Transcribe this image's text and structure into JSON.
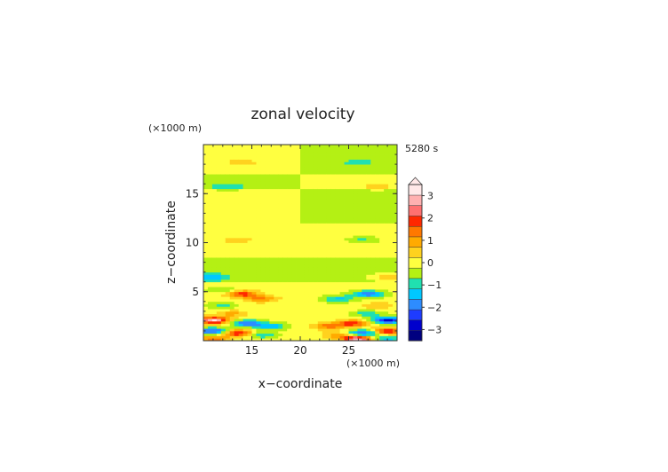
{
  "chart_data": {
    "type": "heatmap",
    "title": "zonal velocity",
    "time_label": "5280 s",
    "xlabel": "x−coordinate",
    "ylabel": "z−coordinate",
    "x_unit": "(×1000 m)",
    "y_unit": "(×1000 m)",
    "xlim": [
      10,
      30
    ],
    "ylim": [
      0,
      20
    ],
    "x_ticks": [
      {
        "value": 15,
        "label": "15"
      },
      {
        "value": 20,
        "label": "20"
      },
      {
        "value": 25,
        "label": "25"
      }
    ],
    "y_ticks": [
      {
        "value": 5,
        "label": "5"
      },
      {
        "value": 10,
        "label": "10"
      },
      {
        "value": 15,
        "label": "15"
      }
    ],
    "colorbar": {
      "range": [
        -3.5,
        3.5
      ],
      "step": 0.5,
      "extend": "max",
      "tick_labels": [
        {
          "value": 3,
          "label": "3"
        },
        {
          "value": 2,
          "label": "2"
        },
        {
          "value": 1,
          "label": "1"
        },
        {
          "value": 0,
          "label": "0"
        },
        {
          "value": -1,
          "label": "−1"
        },
        {
          "value": -2,
          "label": "−2"
        },
        {
          "value": -3,
          "label": "−3"
        }
      ],
      "colors": [
        "#000080",
        "#0000cd",
        "#1e3cff",
        "#2d8cff",
        "#00c8ff",
        "#20e0b0",
        "#b4f014",
        "#ffff40",
        "#ffd21e",
        "#ffaa00",
        "#ff7800",
        "#ff2800",
        "#ff7070",
        "#ffb0b0",
        "#ffe8e8"
      ]
    },
    "field_grid": {
      "x": [
        10,
        11,
        12,
        13,
        14,
        15,
        16,
        17,
        18,
        19,
        19.8,
        20.2,
        21,
        22,
        23,
        24,
        25,
        26,
        27,
        28,
        29,
        30
      ],
      "z": [
        0.25,
        0.75,
        1.25,
        1.75,
        2.25,
        2.75,
        3.25,
        3.75,
        4.25,
        4.75,
        5.25,
        5.75,
        6.25,
        6.75,
        7.25,
        7.75,
        8.25,
        8.75,
        9.25,
        9.75,
        10.25,
        10.75,
        11.25,
        11.75,
        12.25,
        12.75,
        13.25,
        13.75,
        14.25,
        14.75,
        15.25,
        15.75,
        16.25,
        16.75,
        17.25,
        17.75,
        18.25,
        18.75,
        19.25,
        19.75
      ],
      "regions": [
        {
          "x": [
            10,
            30
          ],
          "z": [
            17,
            20
          ],
          "value": 0.2,
          "comment": ""
        },
        {
          "x": [
            10,
            20
          ],
          "z": [
            17,
            20
          ],
          "value": 0.2
        },
        {
          "x": [
            20,
            30
          ],
          "z": [
            17,
            20
          ],
          "value": -0.2
        },
        {
          "x": [
            10,
            20
          ],
          "z": [
            15.5,
            17
          ],
          "value": -0.2
        },
        {
          "x": [
            20,
            30
          ],
          "z": [
            15.5,
            17
          ],
          "value": 0.2
        },
        {
          "x": [
            10,
            20
          ],
          "z": [
            12,
            15.5
          ],
          "value": 0.2
        },
        {
          "x": [
            20,
            30
          ],
          "z": [
            12,
            15.5
          ],
          "value": -0.2
        },
        {
          "x": [
            10,
            20
          ],
          "z": [
            8.5,
            12
          ],
          "value": 0.2
        },
        {
          "x": [
            20,
            30
          ],
          "z": [
            8.5,
            12
          ],
          "value": 0.2
        },
        {
          "x": [
            10,
            30
          ],
          "z": [
            6,
            8.5
          ],
          "value": -0.2
        },
        {
          "x": [
            10,
            30
          ],
          "z": [
            0,
            6
          ],
          "value": 0.2
        }
      ],
      "features": [
        {
          "x": 14,
          "z": 18.2,
          "value": 0.6
        },
        {
          "x": 26,
          "z": 18.2,
          "value": -0.6
        },
        {
          "x": 12.5,
          "z": 15.7,
          "value": -0.8
        },
        {
          "x": 28,
          "z": 15.7,
          "value": 0.6
        },
        {
          "x": 13.5,
          "z": 10.3,
          "value": 0.6
        },
        {
          "x": 26.5,
          "z": 10.3,
          "value": -0.8
        },
        {
          "x": 11,
          "z": 6.5,
          "value": -1.2
        },
        {
          "x": 29,
          "z": 6.5,
          "value": 1.2
        },
        {
          "x": 12,
          "z": 5.2,
          "value": -0.8
        },
        {
          "x": 14,
          "z": 4.8,
          "value": 2.2
        },
        {
          "x": 16,
          "z": 4.3,
          "value": 1.4
        },
        {
          "x": 27,
          "z": 4.8,
          "value": -2.2
        },
        {
          "x": 24,
          "z": 4.3,
          "value": -1.4
        },
        {
          "x": 12,
          "z": 3.6,
          "value": -0.8
        },
        {
          "x": 28,
          "z": 3.6,
          "value": 0.8
        },
        {
          "x": 13,
          "z": 2.8,
          "value": 1.0
        },
        {
          "x": 27,
          "z": 2.8,
          "value": -1.0
        },
        {
          "x": 11,
          "z": 2.1,
          "value": 3.4
        },
        {
          "x": 14.5,
          "z": 1.8,
          "value": -2.2
        },
        {
          "x": 17,
          "z": 1.5,
          "value": -1.6
        },
        {
          "x": 29,
          "z": 2.1,
          "value": -3.0
        },
        {
          "x": 25.5,
          "z": 1.8,
          "value": 2.2
        },
        {
          "x": 23,
          "z": 1.5,
          "value": 1.6
        },
        {
          "x": 11,
          "z": 1.0,
          "value": -2.6
        },
        {
          "x": 13.5,
          "z": 0.8,
          "value": 2.6
        },
        {
          "x": 16,
          "z": 0.6,
          "value": -1.2
        },
        {
          "x": 29,
          "z": 1.0,
          "value": 2.6
        },
        {
          "x": 26.5,
          "z": 0.8,
          "value": -2.6
        },
        {
          "x": 24,
          "z": 0.6,
          "value": 1.2
        },
        {
          "x": 11,
          "z": 0.2,
          "value": 1.6
        },
        {
          "x": 29,
          "z": 0.2,
          "value": -1.6
        },
        {
          "x": 26,
          "z": 0.2,
          "value": 3.4
        }
      ]
    }
  }
}
